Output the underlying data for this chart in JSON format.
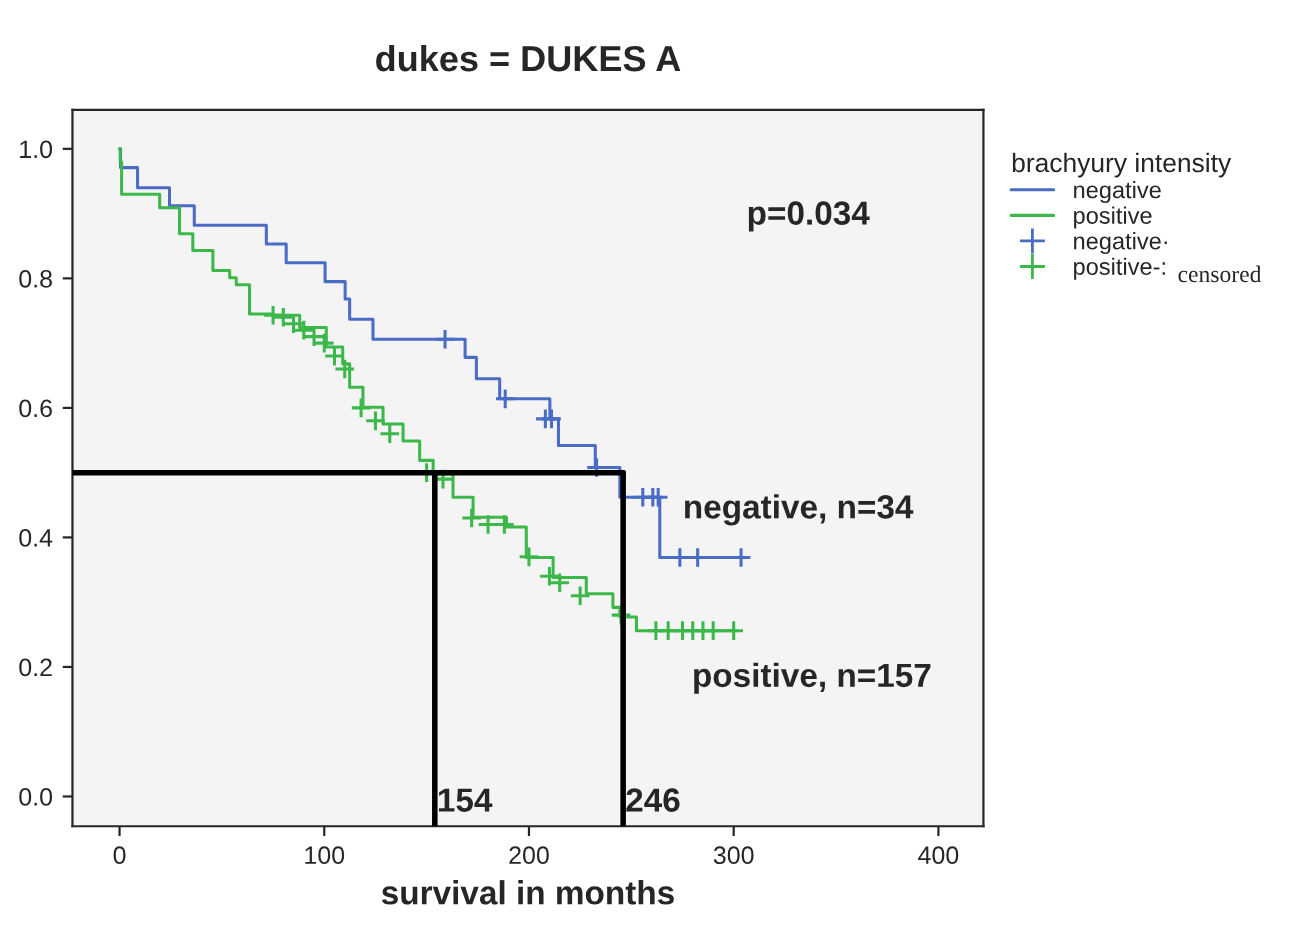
{
  "chart_data": {
    "type": "step",
    "title": "dukes = DUKES A",
    "xlabel": "survival in months",
    "legend_title": "brachyury intensity",
    "xlim": [
      -23,
      422
    ],
    "ylim": [
      -0.046,
      1.06
    ],
    "xticks": [
      0,
      100,
      200,
      300,
      400
    ],
    "yticks": [
      {
        "value": 0,
        "label": "0.0"
      },
      {
        "value": 0.2,
        "label": "0.2"
      },
      {
        "value": 0.4,
        "label": "0.4"
      },
      {
        "value": 0.6,
        "label": "0.6"
      },
      {
        "value": 0.8,
        "label": "0.8"
      },
      {
        "value": 1.0,
        "label": "1.0"
      }
    ],
    "series": [
      {
        "name": "negative",
        "color": "#4a6cc4",
        "x": [
          0,
          0.5,
          8.8,
          24.4,
          36.5,
          71.7,
          81.4,
          100.4,
          110.2,
          112.4,
          123.8,
          168.8,
          174.3,
          185.7,
          210.2,
          214.4,
          232.4,
          244.4,
          263.9,
          303.6
        ],
        "values": [
          1.0,
          0.971,
          0.94,
          0.912,
          0.882,
          0.853,
          0.824,
          0.795,
          0.768,
          0.737,
          0.706,
          0.678,
          0.645,
          0.614,
          0.583,
          0.542,
          0.508,
          0.462,
          0.369,
          0.369
        ]
      },
      {
        "name": "positive",
        "color": "#3cb84a",
        "x": [
          0,
          0.3,
          1,
          10.4,
          19.6,
          29.3,
          35.8,
          45.6,
          53.8,
          57,
          63.5,
          74.9,
          88,
          101,
          109,
          112.4,
          118.9,
          128.7,
          138.5,
          146.6,
          153.2,
          162.9,
          172.7,
          189,
          198.7,
          211.8,
          228,
          241,
          244.4,
          252.5,
          301.5
        ],
        "values": [
          1.0,
          0.98,
          0.93,
          0.93,
          0.909,
          0.869,
          0.843,
          0.812,
          0.801,
          0.79,
          0.745,
          0.743,
          0.724,
          0.694,
          0.668,
          0.632,
          0.601,
          0.575,
          0.549,
          0.519,
          0.498,
          0.462,
          0.431,
          0.416,
          0.369,
          0.338,
          0.313,
          0.292,
          0.277,
          0.256,
          0.256
        ]
      },
      {
        "name": "negative·",
        "type": "scatter",
        "marker": "cross",
        "color": "#4a6cc4",
        "x": [
          159,
          188.4,
          208,
          211,
          233,
          255.6,
          260.5,
          263.1,
          273.7,
          282.4,
          303.6
        ],
        "values": [
          0.706,
          0.614,
          0.583,
          0.583,
          0.508,
          0.462,
          0.462,
          0.462,
          0.369,
          0.369,
          0.369
        ]
      },
      {
        "name": "positive-:",
        "type": "scatter",
        "marker": "cross",
        "color": "#3cb84a",
        "x": [
          75,
          80,
          85,
          90,
          95,
          100,
          105,
          110,
          118,
          125,
          132,
          150,
          158,
          172,
          180,
          188,
          200,
          210,
          215,
          225,
          245,
          262,
          268,
          275,
          280,
          285,
          290,
          300
        ],
        "values": [
          0.743,
          0.74,
          0.73,
          0.72,
          0.71,
          0.7,
          0.68,
          0.66,
          0.6,
          0.58,
          0.56,
          0.5,
          0.49,
          0.43,
          0.42,
          0.42,
          0.37,
          0.34,
          0.33,
          0.31,
          0.28,
          0.256,
          0.256,
          0.256,
          0.256,
          0.256,
          0.256,
          0.256
        ]
      }
    ],
    "ref_lines": [
      {
        "axis": "y",
        "value": 0.5,
        "color": "#000000"
      },
      {
        "axis": "x",
        "value": 154,
        "label": "154",
        "color": "#000000"
      },
      {
        "axis": "x",
        "value": 246,
        "label": "246",
        "color": "#000000"
      }
    ],
    "annotations": [
      "p=0.034",
      "censored",
      "negative, n=34",
      "positive, n=157"
    ],
    "legend": "top right",
    "grid": false
  }
}
